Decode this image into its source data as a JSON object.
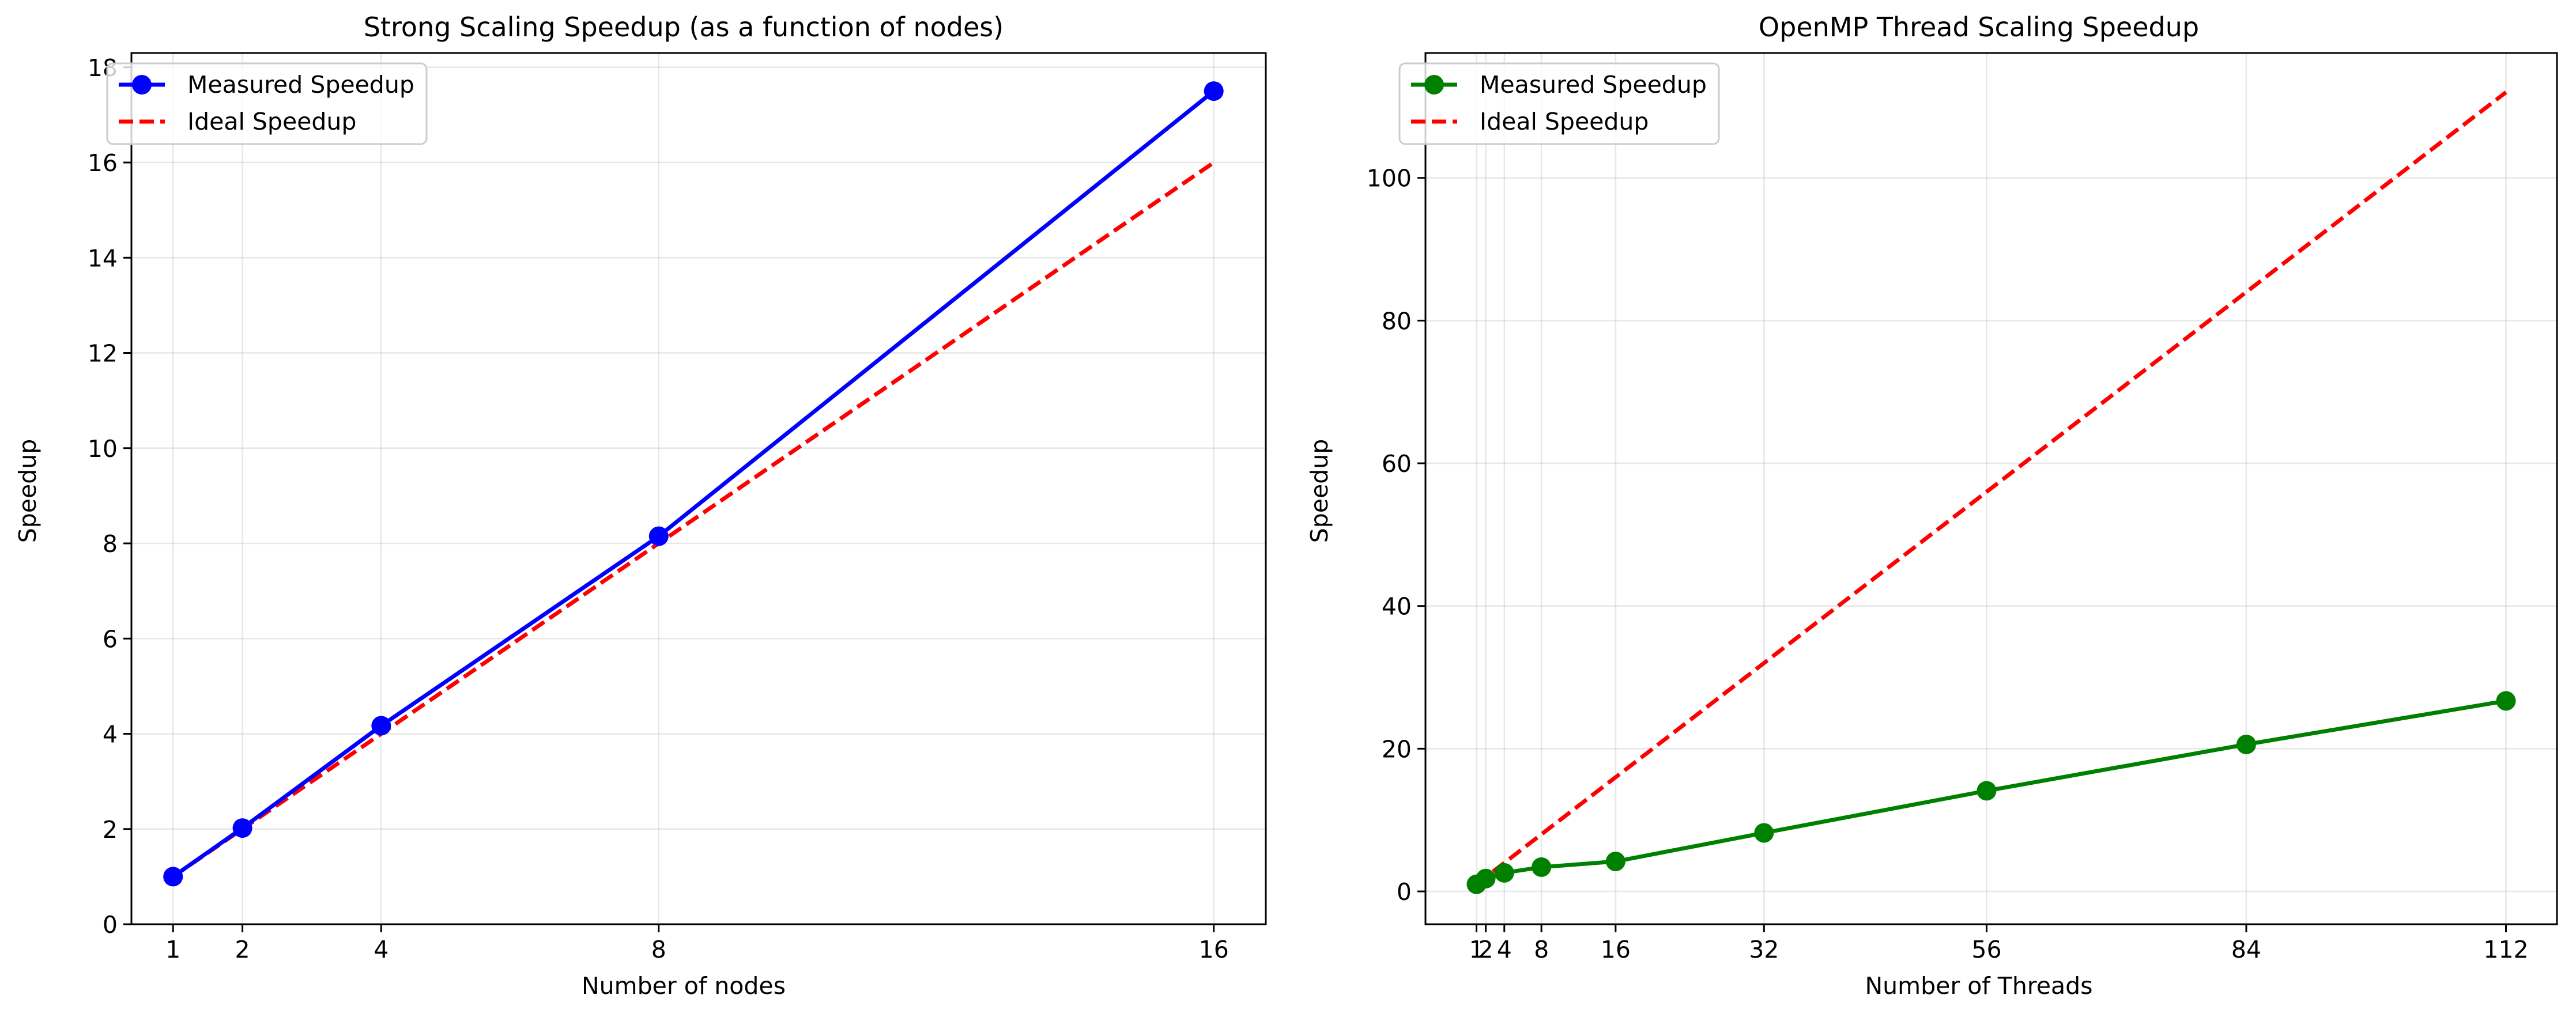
{
  "chart_data": [
    {
      "type": "line",
      "title": "Strong Scaling Speedup (as a function of nodes)",
      "xlabel": "Number of nodes",
      "ylabel": "Speedup",
      "x": [
        1,
        2,
        4,
        8,
        16
      ],
      "xticks": [
        1,
        2,
        4,
        8,
        16
      ],
      "xtick_labels": [
        "1",
        "2",
        "4",
        "8",
        "16"
      ],
      "xlim": [
        0.4,
        16.75
      ],
      "yticks": [
        0,
        2,
        4,
        6,
        8,
        10,
        12,
        14,
        16,
        18
      ],
      "ytick_labels": [
        "0",
        "2",
        "4",
        "6",
        "8",
        "10",
        "12",
        "14",
        "16",
        "18"
      ],
      "ylim": [
        0,
        18.3
      ],
      "grid": true,
      "legend_position": "upper-left",
      "series": [
        {
          "name": "Measured Speedup",
          "values": [
            1.0,
            2.02,
            4.17,
            8.15,
            17.5
          ],
          "color": "#0000ff",
          "style": "solid",
          "marker": "circle"
        },
        {
          "name": "Ideal Speedup",
          "values": [
            1,
            2,
            4,
            8,
            16
          ],
          "color": "#ff0000",
          "style": "dashed",
          "marker": "none"
        }
      ]
    },
    {
      "type": "line",
      "title": "OpenMP Thread Scaling Speedup",
      "xlabel": "Number of Threads",
      "ylabel": "Speedup",
      "x": [
        1,
        2,
        4,
        8,
        16,
        32,
        56,
        84,
        112
      ],
      "xticks": [
        1,
        2,
        4,
        8,
        16,
        32,
        56,
        84,
        112
      ],
      "xtick_labels": [
        "1",
        "2",
        "4",
        "8",
        "16",
        "32",
        "56",
        "84",
        "112"
      ],
      "xlim": [
        -4.5,
        117.5
      ],
      "yticks": [
        0,
        20,
        40,
        60,
        80,
        100
      ],
      "ytick_labels": [
        "0",
        "20",
        "40",
        "60",
        "80",
        "100"
      ],
      "ylim": [
        -4.6,
        117.5
      ],
      "grid": true,
      "legend_position": "upper-left",
      "series": [
        {
          "name": "Measured Speedup",
          "values": [
            1.0,
            1.8,
            2.6,
            3.4,
            4.2,
            8.2,
            14.1,
            20.6,
            26.7
          ],
          "color": "#008000",
          "style": "solid",
          "marker": "circle"
        },
        {
          "name": "Ideal Speedup",
          "values": [
            1,
            2,
            4,
            8,
            16,
            32,
            56,
            84,
            112
          ],
          "color": "#ff0000",
          "style": "dashed",
          "marker": "none"
        }
      ]
    }
  ]
}
